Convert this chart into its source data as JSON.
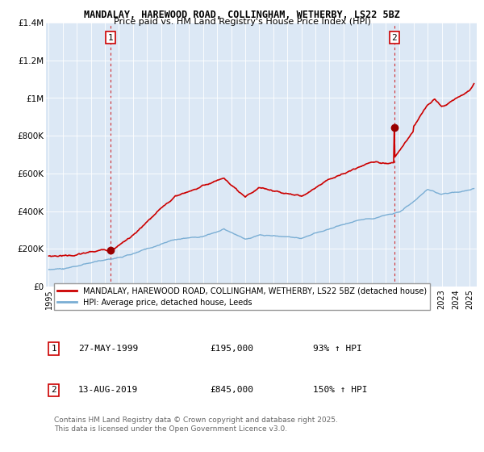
{
  "title": "MANDALAY, HAREWOOD ROAD, COLLINGHAM, WETHERBY, LS22 5BZ",
  "subtitle": "Price paid vs. HM Land Registry's House Price Index (HPI)",
  "bg_color": "#ffffff",
  "plot_bg_color": "#dce8f5",
  "grid_color": "#ffffff",
  "hpi_line_color": "#7aaed4",
  "price_line_color": "#cc0000",
  "dashed_line_color": "#cc0000",
  "x_start": 1994.8,
  "x_end": 2025.5,
  "y_min": 0,
  "y_max": 1400000,
  "yticks": [
    0,
    200000,
    400000,
    600000,
    800000,
    1000000,
    1200000,
    1400000
  ],
  "ytick_labels": [
    "£0",
    "£200K",
    "£400K",
    "£600K",
    "£800K",
    "£1M",
    "£1.2M",
    "£1.4M"
  ],
  "xtick_years": [
    1995,
    1996,
    1997,
    1998,
    1999,
    2000,
    2001,
    2002,
    2003,
    2004,
    2005,
    2006,
    2007,
    2008,
    2009,
    2010,
    2011,
    2012,
    2013,
    2014,
    2015,
    2016,
    2017,
    2018,
    2019,
    2020,
    2021,
    2022,
    2023,
    2024,
    2025
  ],
  "sale1_x": 1999.38,
  "sale1_y": 195000,
  "sale2_x": 2019.62,
  "sale2_y": 845000,
  "legend_line1": "MANDALAY, HAREWOOD ROAD, COLLINGHAM, WETHERBY, LS22 5BZ (detached house)",
  "legend_line2": "HPI: Average price, detached house, Leeds",
  "ann1_num": "1",
  "ann1_date": "27-MAY-1999",
  "ann1_price": "£195,000",
  "ann1_hpi": "93% ↑ HPI",
  "ann2_num": "2",
  "ann2_date": "13-AUG-2019",
  "ann2_price": "£845,000",
  "ann2_hpi": "150% ↑ HPI",
  "footer": "Contains HM Land Registry data © Crown copyright and database right 2025.\nThis data is licensed under the Open Government Licence v3.0."
}
